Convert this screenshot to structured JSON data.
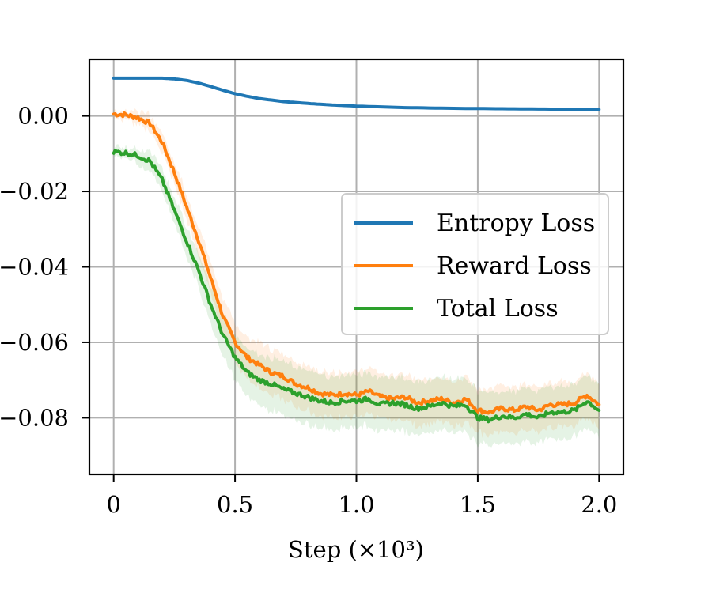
{
  "chart_data": {
    "type": "line",
    "title": "",
    "xlabel": "Step (×10³)",
    "ylabel": "",
    "xlim": [
      -0.1,
      2.1
    ],
    "ylim": [
      -0.095,
      0.015
    ],
    "xticks": [
      {
        "value": 0,
        "label": "0"
      },
      {
        "value": 0.5,
        "label": "0.5"
      },
      {
        "value": 1.0,
        "label": "1.0"
      },
      {
        "value": 1.5,
        "label": "1.5"
      },
      {
        "value": 2.0,
        "label": "2.0"
      }
    ],
    "yticks": [
      {
        "value": 0.0,
        "label": "0.00"
      },
      {
        "value": -0.02,
        "label": "−0.02"
      },
      {
        "value": -0.04,
        "label": "−0.04"
      },
      {
        "value": -0.06,
        "label": "−0.06"
      },
      {
        "value": -0.08,
        "label": "−0.08"
      }
    ],
    "grid": true,
    "legend_position": "center-right",
    "series": [
      {
        "name": "Entropy Loss",
        "color": "#1f77b4",
        "band": 0,
        "x": [
          0,
          0.1,
          0.2,
          0.25,
          0.3,
          0.35,
          0.4,
          0.45,
          0.5,
          0.55,
          0.6,
          0.7,
          0.8,
          0.9,
          1.0,
          1.2,
          1.4,
          1.6,
          1.8,
          2.0
        ],
        "y": [
          0.01,
          0.01,
          0.01,
          0.0098,
          0.0094,
          0.0087,
          0.0078,
          0.0068,
          0.0059,
          0.0052,
          0.0046,
          0.0038,
          0.0033,
          0.0029,
          0.0026,
          0.0022,
          0.002,
          0.0019,
          0.0018,
          0.0017
        ]
      },
      {
        "name": "Reward Loss",
        "color": "#ff7f0e",
        "band": 0.006,
        "x": [
          0,
          0.05,
          0.1,
          0.15,
          0.2,
          0.25,
          0.3,
          0.35,
          0.4,
          0.45,
          0.5,
          0.55,
          0.6,
          0.65,
          0.7,
          0.75,
          0.8,
          0.85,
          0.9,
          0.95,
          1.0,
          1.05,
          1.1,
          1.15,
          1.2,
          1.25,
          1.3,
          1.35,
          1.4,
          1.45,
          1.5,
          1.55,
          1.6,
          1.65,
          1.7,
          1.75,
          1.8,
          1.85,
          1.9,
          1.95,
          2.0
        ],
        "y": [
          0.0005,
          0.0003,
          -0.0005,
          -0.002,
          -0.007,
          -0.015,
          -0.024,
          -0.033,
          -0.043,
          -0.053,
          -0.06,
          -0.064,
          -0.066,
          -0.068,
          -0.069,
          -0.071,
          -0.072,
          -0.0735,
          -0.074,
          -0.0735,
          -0.074,
          -0.073,
          -0.0745,
          -0.075,
          -0.0745,
          -0.076,
          -0.0755,
          -0.075,
          -0.076,
          -0.075,
          -0.078,
          -0.0785,
          -0.0775,
          -0.078,
          -0.077,
          -0.078,
          -0.0765,
          -0.0765,
          -0.076,
          -0.074,
          -0.0765
        ]
      },
      {
        "name": "Total Loss",
        "color": "#2ca02c",
        "band": 0.007,
        "x": [
          0,
          0.05,
          0.1,
          0.15,
          0.2,
          0.25,
          0.3,
          0.35,
          0.4,
          0.45,
          0.5,
          0.55,
          0.6,
          0.65,
          0.7,
          0.75,
          0.8,
          0.85,
          0.9,
          0.95,
          1.0,
          1.05,
          1.1,
          1.15,
          1.2,
          1.25,
          1.3,
          1.35,
          1.4,
          1.45,
          1.5,
          1.55,
          1.6,
          1.65,
          1.7,
          1.75,
          1.8,
          1.85,
          1.9,
          1.95,
          2.0
        ],
        "y": [
          -0.0095,
          -0.0098,
          -0.0105,
          -0.012,
          -0.017,
          -0.025,
          -0.033,
          -0.041,
          -0.05,
          -0.058,
          -0.064,
          -0.068,
          -0.07,
          -0.071,
          -0.0725,
          -0.0735,
          -0.0745,
          -0.0755,
          -0.076,
          -0.0755,
          -0.0755,
          -0.075,
          -0.0765,
          -0.076,
          -0.0765,
          -0.0775,
          -0.077,
          -0.076,
          -0.077,
          -0.0765,
          -0.08,
          -0.0805,
          -0.0795,
          -0.08,
          -0.079,
          -0.08,
          -0.0785,
          -0.0785,
          -0.078,
          -0.0755,
          -0.078
        ]
      }
    ]
  }
}
